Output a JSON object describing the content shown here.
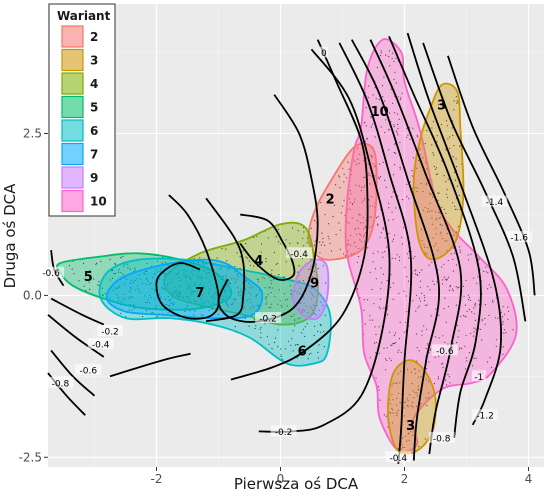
{
  "chart_data": {
    "type": "scatter",
    "title": "",
    "xlabel": "Pierwsza oś DCA",
    "ylabel": "Druga oś DCA",
    "xlim": [
      -3.75,
      4.25
    ],
    "ylim": [
      -2.65,
      4.5
    ],
    "xticks": [
      -2,
      0,
      2,
      4
    ],
    "yticks": [
      -2.5,
      0.0,
      2.5
    ],
    "xtick_labels": [
      "-2",
      "0",
      "2",
      "4"
    ],
    "ytick_labels": [
      "-2.5",
      "0.0",
      "2.5"
    ],
    "grid": true,
    "background": "#ebebeb",
    "legend": {
      "title": "Wariant",
      "placement": "top-left-inside",
      "entries": [
        {
          "label": "2",
          "color": "#F8766D"
        },
        {
          "label": "3",
          "color": "#CD9600"
        },
        {
          "label": "4",
          "color": "#7CAE00"
        },
        {
          "label": "5",
          "color": "#00BE67"
        },
        {
          "label": "6",
          "color": "#00BFC4"
        },
        {
          "label": "7",
          "color": "#00A9FF"
        },
        {
          "label": "9",
          "color": "#C77CFF"
        },
        {
          "label": "10",
          "color": "#FF61CC"
        }
      ]
    },
    "hulls": [
      {
        "variant": "10",
        "color": "#FF61CC",
        "label_at": [
          1.6,
          2.85
        ],
        "points": [
          [
            1.65,
            3.95
          ],
          [
            1.95,
            3.75
          ],
          [
            2.0,
            3.3
          ],
          [
            2.25,
            2.55
          ],
          [
            2.5,
            1.5
          ],
          [
            2.75,
            1.05
          ],
          [
            3.2,
            0.6
          ],
          [
            3.65,
            0.1
          ],
          [
            3.8,
            -0.6
          ],
          [
            3.4,
            -1.2
          ],
          [
            3.1,
            -1.35
          ],
          [
            2.6,
            -1.45
          ],
          [
            2.15,
            -1.9
          ],
          [
            2.2,
            -2.3
          ],
          [
            1.9,
            -2.4
          ],
          [
            1.6,
            -1.9
          ],
          [
            1.55,
            -1.4
          ],
          [
            1.35,
            -0.9
          ],
          [
            1.3,
            -0.2
          ],
          [
            1.1,
            0.5
          ],
          [
            1.05,
            0.95
          ],
          [
            1.1,
            1.7
          ],
          [
            1.2,
            2.3
          ],
          [
            1.3,
            2.6
          ],
          [
            1.4,
            3.5
          ]
        ]
      },
      {
        "variant": "3",
        "color": "#CD9600",
        "label_at": [
          2.6,
          2.95
        ],
        "points": [
          [
            2.6,
            3.25
          ],
          [
            2.85,
            3.15
          ],
          [
            2.9,
            2.6
          ],
          [
            2.95,
            1.6
          ],
          [
            2.85,
            0.9
          ],
          [
            2.6,
            0.6
          ],
          [
            2.35,
            0.6
          ],
          [
            2.2,
            1.0
          ],
          [
            2.15,
            1.8
          ],
          [
            2.25,
            2.4
          ],
          [
            2.4,
            2.85
          ]
        ]
      },
      {
        "variant": "3",
        "color": "#CD9600",
        "label_at": [
          2.1,
          -2.0
        ],
        "points": [
          [
            2.1,
            -1.0
          ],
          [
            2.35,
            -1.2
          ],
          [
            2.5,
            -1.6
          ],
          [
            2.45,
            -2.1
          ],
          [
            2.2,
            -2.4
          ],
          [
            1.9,
            -2.4
          ],
          [
            1.75,
            -2.0
          ],
          [
            1.75,
            -1.5
          ],
          [
            1.85,
            -1.15
          ]
        ]
      },
      {
        "variant": "2",
        "color": "#F8766D",
        "label_at": [
          0.8,
          1.5
        ],
        "points": [
          [
            1.2,
            2.3
          ],
          [
            1.5,
            2.25
          ],
          [
            1.55,
            1.7
          ],
          [
            1.5,
            1.1
          ],
          [
            1.35,
            0.75
          ],
          [
            1.1,
            0.6
          ],
          [
            0.75,
            0.55
          ],
          [
            0.55,
            0.65
          ],
          [
            0.45,
            0.9
          ],
          [
            0.55,
            1.3
          ],
          [
            0.8,
            1.75
          ]
        ]
      },
      {
        "variant": "4",
        "color": "#7CAE00",
        "label_at": [
          -0.35,
          0.55
        ],
        "points": [
          [
            0.0,
            1.1
          ],
          [
            0.4,
            1.05
          ],
          [
            0.55,
            0.55
          ],
          [
            0.6,
            0.0
          ],
          [
            0.45,
            -0.35
          ],
          [
            0.0,
            -0.45
          ],
          [
            -0.6,
            -0.3
          ],
          [
            -1.3,
            -0.15
          ],
          [
            -1.75,
            0.0
          ],
          [
            -1.85,
            0.3
          ],
          [
            -1.3,
            0.65
          ],
          [
            -0.6,
            0.85
          ]
        ]
      },
      {
        "variant": "5",
        "color": "#00BE67",
        "label_at": [
          -3.1,
          0.3
        ],
        "points": [
          [
            -3.55,
            0.5
          ],
          [
            -2.9,
            0.6
          ],
          [
            -2.3,
            0.65
          ],
          [
            -1.6,
            0.55
          ],
          [
            -1.05,
            0.35
          ],
          [
            -0.8,
            0.0
          ],
          [
            -1.3,
            -0.2
          ],
          [
            -2.2,
            -0.2
          ],
          [
            -2.85,
            -0.05
          ],
          [
            -3.35,
            0.15
          ],
          [
            -3.55,
            0.35
          ]
        ]
      },
      {
        "variant": "6",
        "color": "#00BFC4",
        "label_at": [
          0.35,
          -0.85
        ],
        "points": [
          [
            -1.5,
            0.55
          ],
          [
            -0.9,
            0.45
          ],
          [
            0.1,
            0.25
          ],
          [
            0.55,
            0.1
          ],
          [
            0.8,
            -0.3
          ],
          [
            0.75,
            -0.9
          ],
          [
            0.55,
            -1.05
          ],
          [
            0.1,
            -1.05
          ],
          [
            -0.5,
            -0.65
          ],
          [
            -1.1,
            -0.45
          ],
          [
            -1.8,
            -0.35
          ],
          [
            -2.5,
            -0.35
          ],
          [
            -2.9,
            -0.05
          ],
          [
            -2.8,
            0.35
          ],
          [
            -2.3,
            0.55
          ]
        ]
      },
      {
        "variant": "7",
        "color": "#00A9FF",
        "label_at": [
          -1.3,
          0.05
        ],
        "points": [
          [
            -1.3,
            0.55
          ],
          [
            -0.9,
            0.5
          ],
          [
            -0.6,
            0.3
          ],
          [
            -0.3,
            0.05
          ],
          [
            -0.45,
            -0.3
          ],
          [
            -1.1,
            -0.35
          ],
          [
            -1.9,
            -0.3
          ],
          [
            -2.5,
            -0.25
          ],
          [
            -2.8,
            -0.05
          ],
          [
            -2.6,
            0.25
          ],
          [
            -2.0,
            0.45
          ]
        ]
      },
      {
        "variant": "9",
        "color": "#C77CFF",
        "label_at": [
          0.55,
          0.2
        ],
        "points": [
          [
            0.55,
            0.55
          ],
          [
            0.75,
            0.45
          ],
          [
            0.75,
            -0.05
          ],
          [
            0.6,
            -0.35
          ],
          [
            0.35,
            -0.3
          ],
          [
            0.2,
            -0.05
          ],
          [
            0.3,
            0.35
          ]
        ]
      }
    ],
    "contours": [
      {
        "level": "-1.6",
        "points": [
          [
            2.7,
            3.7
          ],
          [
            3.1,
            2.6
          ],
          [
            3.6,
            1.6
          ],
          [
            4.0,
            0.7
          ],
          [
            4.1,
            0.0
          ]
        ],
        "label_at": [
          3.85,
          0.9
        ]
      },
      {
        "level": "-1.4",
        "points": [
          [
            2.3,
            3.9
          ],
          [
            2.75,
            2.7
          ],
          [
            3.3,
            1.6
          ],
          [
            3.75,
            0.6
          ],
          [
            3.95,
            -0.4
          ]
        ],
        "label_at": [
          3.45,
          1.45
        ]
      },
      {
        "level": "-1.2",
        "points": [
          [
            2.05,
            4.05
          ],
          [
            2.4,
            3.0
          ],
          [
            2.95,
            1.6
          ],
          [
            3.45,
            0.2
          ],
          [
            3.55,
            -0.8
          ],
          [
            3.3,
            -1.6
          ],
          [
            3.1,
            -2.0
          ]
        ],
        "label_at": [
          3.3,
          -1.85
        ]
      },
      {
        "level": "-1",
        "points": [
          [
            1.75,
            4.0
          ],
          [
            2.15,
            3.1
          ],
          [
            2.7,
            1.9
          ],
          [
            3.2,
            0.4
          ],
          [
            3.15,
            -0.7
          ],
          [
            2.9,
            -1.5
          ],
          [
            2.8,
            -2.2
          ]
        ],
        "label_at": [
          3.2,
          -1.25
        ]
      },
      {
        "level": "-0.8",
        "points": [
          [
            1.45,
            3.95
          ],
          [
            1.85,
            3.1
          ],
          [
            2.35,
            1.85
          ],
          [
            2.9,
            0.4
          ],
          [
            2.75,
            -0.8
          ],
          [
            2.5,
            -1.8
          ],
          [
            2.4,
            -2.45
          ]
        ],
        "label_at": [
          2.6,
          -2.2
        ]
      },
      {
        "level": "-0.6",
        "points": [
          [
            1.15,
            3.95
          ],
          [
            1.6,
            3.1
          ],
          [
            2.05,
            1.8
          ],
          [
            2.55,
            0.2
          ],
          [
            2.35,
            -1.0
          ],
          [
            2.2,
            -1.9
          ],
          [
            2.15,
            -2.55
          ]
        ],
        "label_at": [
          2.65,
          -0.85
        ]
      },
      {
        "level": "-0.4",
        "points": [
          [
            0.95,
            3.9
          ],
          [
            1.4,
            3.0
          ],
          [
            1.75,
            1.9
          ],
          [
            2.1,
            0.6
          ],
          [
            2.0,
            -1.0
          ],
          [
            1.95,
            -2.0
          ],
          [
            1.9,
            -2.6
          ]
        ],
        "label_at": [
          1.9,
          -2.5
        ]
      },
      {
        "level": "-0.2",
        "points": [
          [
            0.5,
            3.8
          ],
          [
            1.1,
            3.05
          ],
          [
            1.45,
            2.0
          ],
          [
            1.75,
            0.7
          ],
          [
            1.65,
            -0.5
          ],
          [
            1.3,
            -1.55
          ],
          [
            0.7,
            -2.0
          ],
          [
            0.2,
            -2.1
          ],
          [
            -0.35,
            -2.1
          ]
        ],
        "label_at": [
          0.05,
          -2.1
        ]
      },
      {
        "level": "0",
        "points": [
          [
            0.6,
            3.95
          ],
          [
            0.9,
            3.3
          ],
          [
            1.3,
            2.4
          ],
          [
            1.4,
            1.6
          ],
          [
            1.35,
            0.6
          ],
          [
            1.0,
            -0.3
          ],
          [
            0.4,
            -0.85
          ],
          [
            -0.1,
            -1.1
          ],
          [
            -0.8,
            -1.3
          ]
        ],
        "label_at": [
          0.7,
          3.75
        ]
      },
      {
        "level": "-0.2",
        "points": [
          [
            -0.1,
            3.1
          ],
          [
            0.3,
            2.5
          ],
          [
            0.5,
            1.8
          ],
          [
            0.6,
            1.1
          ],
          [
            0.5,
            0.35
          ],
          [
            0.2,
            -0.2
          ],
          [
            -0.35,
            -0.4
          ],
          [
            -0.8,
            -0.35
          ],
          [
            -1.0,
            -0.1
          ],
          [
            -0.85,
            0.25
          ]
        ],
        "label_at": [
          -0.2,
          -0.35
        ]
      },
      {
        "level": "-0.4",
        "points": [
          [
            -0.65,
            1.25
          ],
          [
            -0.2,
            1.15
          ],
          [
            0.05,
            0.8
          ],
          [
            0.2,
            0.5
          ],
          [
            0.2,
            0.3
          ],
          [
            -0.05,
            0.25
          ],
          [
            -0.4,
            0.5
          ],
          [
            -0.65,
            0.8
          ]
        ],
        "label_at": [
          0.3,
          0.65
        ]
      },
      {
        "level": "",
        "points": [
          [
            -1.8,
            1.55
          ],
          [
            -1.5,
            1.25
          ],
          [
            -1.2,
            0.7
          ],
          [
            -1.0,
            0.0
          ],
          [
            -1.1,
            -0.3
          ],
          [
            -1.5,
            -0.35
          ],
          [
            -1.9,
            -0.15
          ],
          [
            -2.0,
            0.2
          ],
          [
            -1.85,
            0.4
          ],
          [
            -1.6,
            0.5
          ],
          [
            -1.3,
            0.4
          ]
        ],
        "label_at": null
      },
      {
        "level": "",
        "points": [
          [
            -1.2,
            1.5
          ],
          [
            -0.75,
            0.9
          ],
          [
            -0.6,
            0.5
          ],
          [
            -0.6,
            0.0
          ],
          [
            -0.7,
            -0.3
          ],
          [
            -1.2,
            -0.4
          ]
        ],
        "label_at": null
      },
      {
        "level": "",
        "points": [
          [
            -2.75,
            -1.25
          ],
          [
            -1.9,
            -1.0
          ],
          [
            -1.45,
            -0.9
          ]
        ],
        "label_at": null
      },
      {
        "level": "-0.2",
        "points": [
          [
            -3.7,
            -0.05
          ],
          [
            -3.2,
            -0.3
          ],
          [
            -2.85,
            -0.45
          ]
        ],
        "label_at": [
          -2.75,
          -0.55
        ]
      },
      {
        "level": "-0.4",
        "points": [
          [
            -3.75,
            -0.3
          ],
          [
            -3.3,
            -0.65
          ],
          [
            -2.85,
            -0.95
          ]
        ],
        "label_at": [
          -2.9,
          -0.75
        ]
      },
      {
        "level": "-0.6",
        "points": [
          [
            -3.7,
            -0.85
          ],
          [
            -3.35,
            -1.25
          ],
          [
            -3.0,
            -1.55
          ]
        ],
        "label_at": [
          -3.1,
          -1.15
        ]
      },
      {
        "level": "-0.8",
        "points": [
          [
            -3.75,
            -1.2
          ],
          [
            -3.45,
            -1.55
          ],
          [
            -3.15,
            -1.85
          ]
        ],
        "label_at": [
          -3.55,
          -1.35
        ]
      },
      {
        "level": "-0.6",
        "points": [
          [
            -3.7,
            0.7
          ],
          [
            -3.65,
            0.4
          ],
          [
            -3.5,
            0.15
          ]
        ],
        "label_at": [
          -3.7,
          0.35
        ]
      }
    ]
  }
}
